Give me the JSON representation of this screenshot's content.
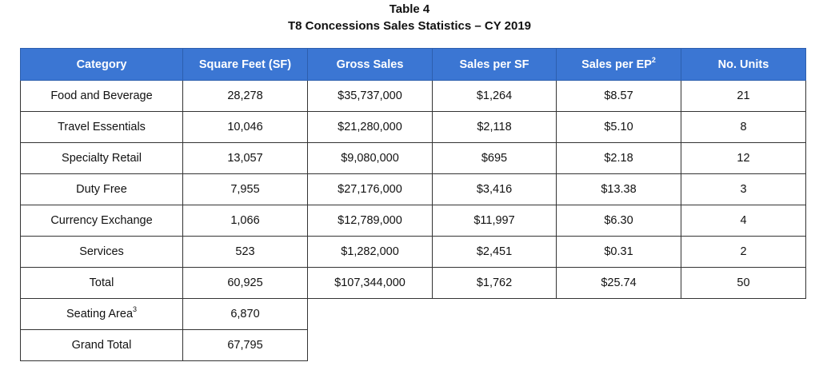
{
  "caption": {
    "table_number": "Table 4",
    "title": "T8 Concessions Sales Statistics – CY 2019"
  },
  "headers": {
    "category": "Category",
    "square_feet": "Square Feet (SF)",
    "gross_sales": "Gross Sales",
    "sales_per_sf": "Sales per SF",
    "sales_per_ep": "Sales per EP",
    "sales_per_ep_sup": "2",
    "units": "No. Units"
  },
  "rows": [
    {
      "category": "Food and Beverage",
      "sf": "28,278",
      "gross": "$35,737,000",
      "per_sf": "$1,264",
      "per_ep": "$8.57",
      "units": "21"
    },
    {
      "category": "Travel Essentials",
      "sf": "10,046",
      "gross": "$21,280,000",
      "per_sf": "$2,118",
      "per_ep": "$5.10",
      "units": "8"
    },
    {
      "category": "Specialty Retail",
      "sf": "13,057",
      "gross": "$9,080,000",
      "per_sf": "$695",
      "per_ep": "$2.18",
      "units": "12"
    },
    {
      "category": "Duty Free",
      "sf": "7,955",
      "gross": "$27,176,000",
      "per_sf": "$3,416",
      "per_ep": "$13.38",
      "units": "3"
    },
    {
      "category": "Currency Exchange",
      "sf": "1,066",
      "gross": "$12,789,000",
      "per_sf": "$11,997",
      "per_ep": "$6.30",
      "units": "4"
    },
    {
      "category": "Services",
      "sf": "523",
      "gross": "$1,282,000",
      "per_sf": "$2,451",
      "per_ep": "$0.31",
      "units": "2"
    },
    {
      "category": "Total",
      "sf": "60,925",
      "gross": "$107,344,000",
      "per_sf": "$1,762",
      "per_ep": "$25.74",
      "units": "50"
    }
  ],
  "extra_rows": [
    {
      "category": "Seating Area",
      "category_sup": "3",
      "sf": "6,870"
    },
    {
      "category": "Grand Total",
      "category_sup": "",
      "sf": "67,795"
    }
  ],
  "colors": {
    "header_background": "#3b76d3",
    "header_text": "#ffffff"
  }
}
